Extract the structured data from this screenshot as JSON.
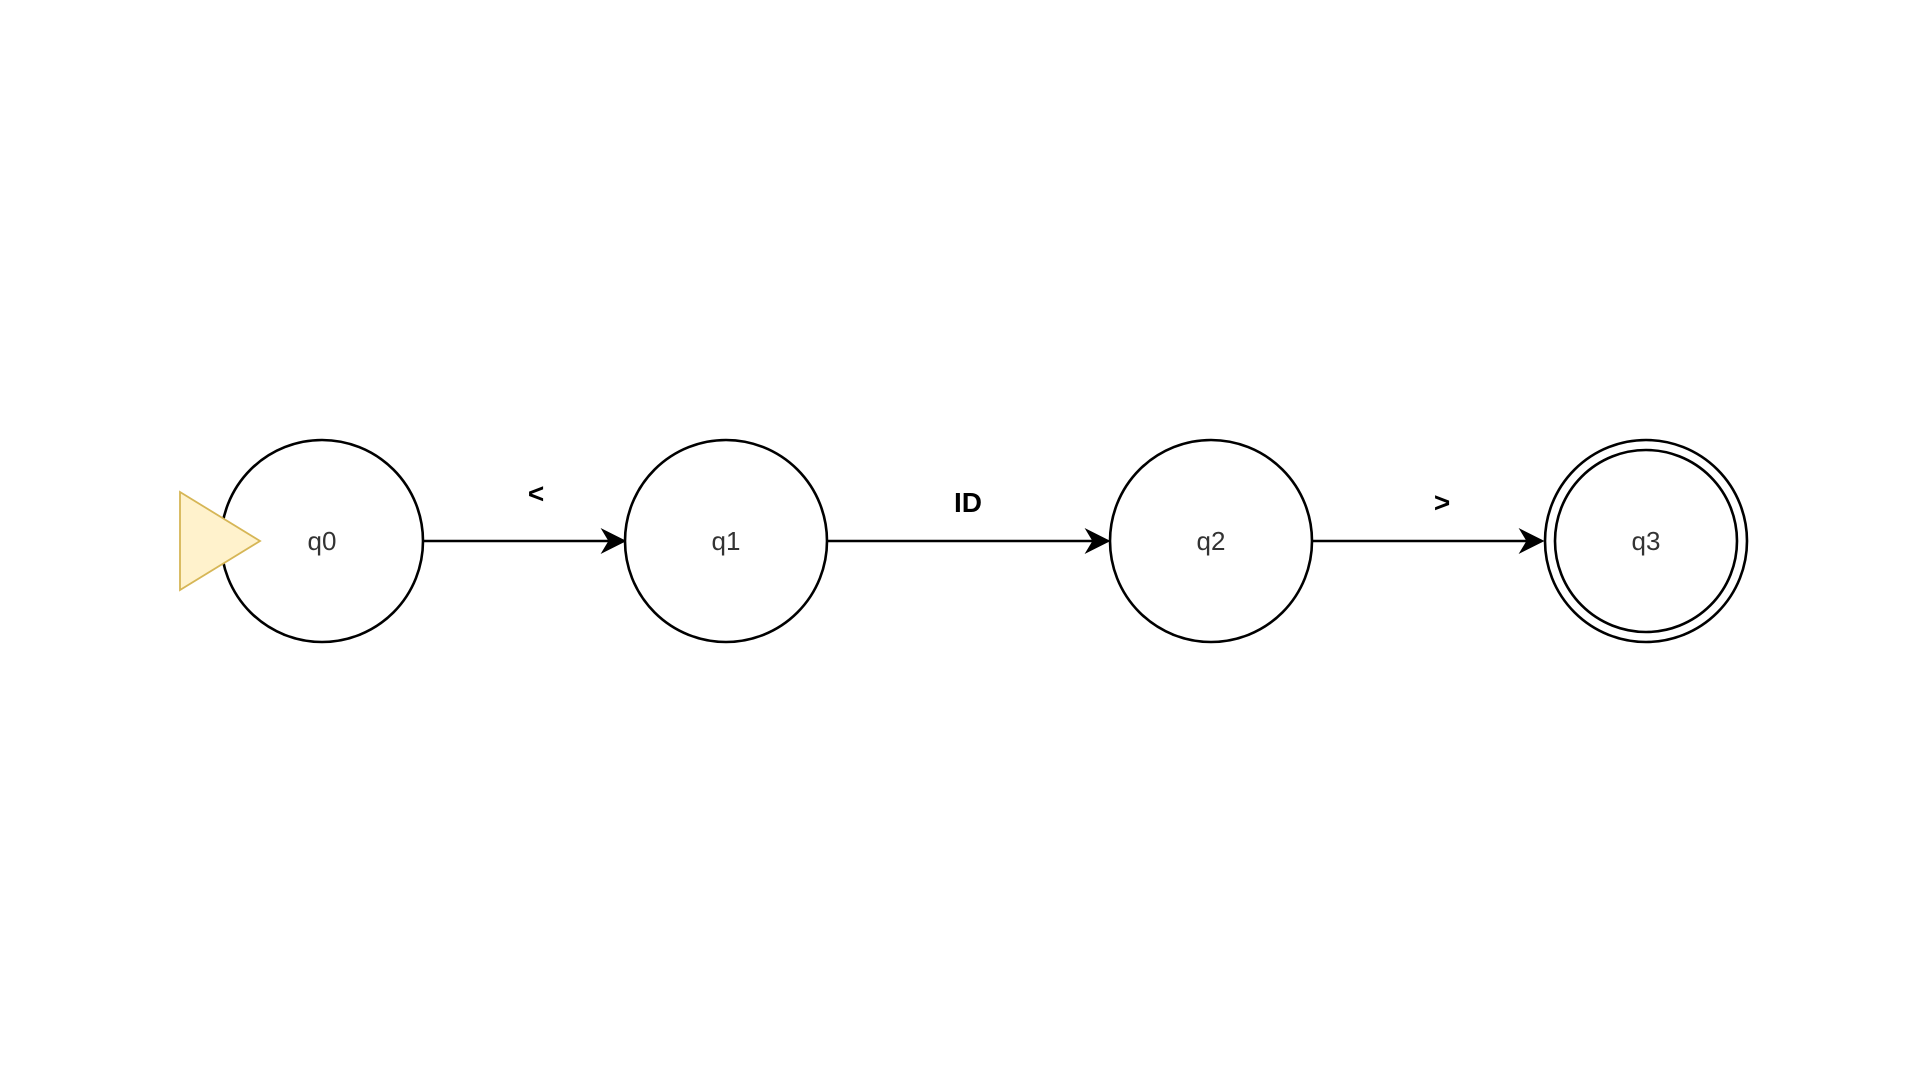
{
  "diagram": {
    "type": "finite-automaton",
    "colors": {
      "start_marker_fill": "#fff2cc",
      "start_marker_stroke": "#d6b656",
      "stroke": "#000000",
      "state_text": "#333333",
      "background": "#ffffff"
    },
    "start_state": "q0",
    "accepting_states": [
      "q3"
    ],
    "states": [
      {
        "id": "q0",
        "label": "q0",
        "accepting": false
      },
      {
        "id": "q1",
        "label": "q1",
        "accepting": false
      },
      {
        "id": "q2",
        "label": "q2",
        "accepting": false
      },
      {
        "id": "q3",
        "label": "q3",
        "accepting": true
      }
    ],
    "transitions": [
      {
        "from": "q0",
        "to": "q1",
        "label": "<"
      },
      {
        "from": "q1",
        "to": "q2",
        "label": "ID"
      },
      {
        "from": "q2",
        "to": "q3",
        "label": ">"
      }
    ]
  }
}
